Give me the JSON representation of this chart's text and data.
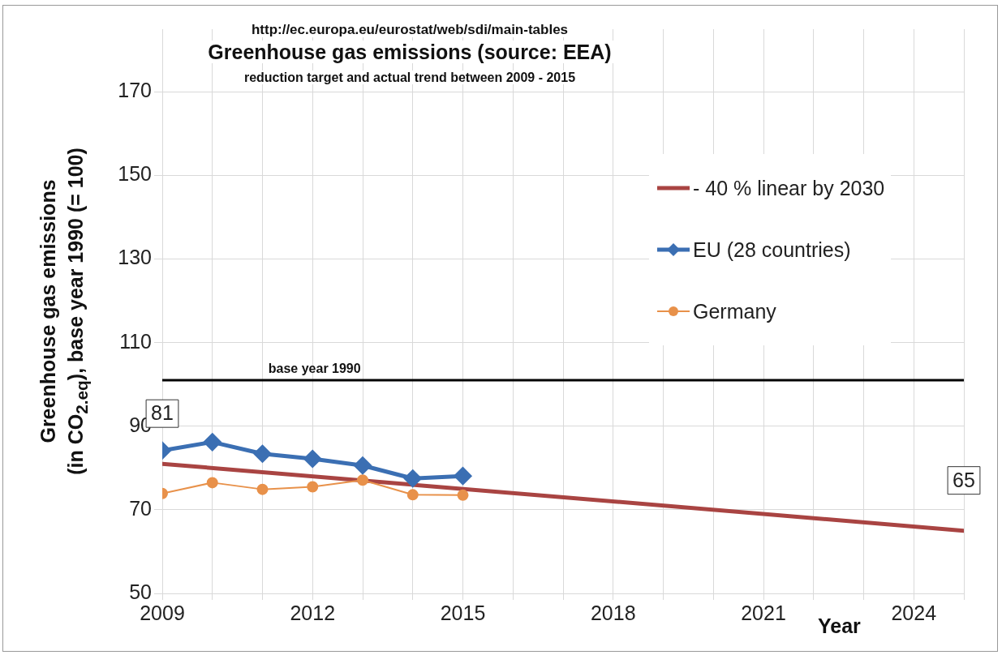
{
  "chart_data": {
    "type": "line",
    "title": "Greenhouse gas emissions (source: EEA)",
    "subtitle": "reduction target and actual trend between 2009 - 2015",
    "annotations": [
      "http://ec.europa.eu/eurostat/web/sdi/main-tables"
    ],
    "xlabel": "Year",
    "ylabel": "Greenhouse gas emissions (in CO$_{2.eq}$), base year 1990 (= 100)",
    "xlim": [
      2009,
      2025
    ],
    "xticks": [
      2009,
      {
        "value": 2010,
        "label": null
      },
      {
        "value": 2011,
        "label": null
      },
      2012,
      {
        "value": 2013,
        "label": null
      },
      {
        "value": 2014,
        "label": null
      },
      2015,
      {
        "value": 2016,
        "label": null
      },
      {
        "value": 2017,
        "label": null
      },
      2018,
      {
        "value": 2019,
        "label": null
      },
      {
        "value": 2020,
        "label": null
      },
      2021,
      {
        "value": 2022,
        "label": null
      },
      {
        "value": 2023,
        "label": null
      },
      2024,
      {
        "value": 2025,
        "label": null
      }
    ],
    "ylim": [
      50,
      185
    ],
    "yticks": [
      50,
      70,
      90,
      110,
      130,
      150,
      170
    ],
    "grid": true,
    "legend": "top right",
    "ref_lines": [
      {
        "axis": "y",
        "value": 101,
        "label": "base year 1990",
        "color": "#000000"
      }
    ],
    "series": [
      {
        "name": "- 40 % linear by 2030",
        "color": "#a94442",
        "x": [
          2009,
          2025
        ],
        "values": [
          81,
          65
        ],
        "value_labels": [
          "81",
          "65"
        ],
        "marker": "none"
      },
      {
        "name": "EU (28 countries)",
        "color": "#3b6fb3",
        "x": [
          2009,
          2010,
          2011,
          2012,
          2013,
          2014,
          2015
        ],
        "values": [
          84.2,
          86.2,
          83.4,
          82.2,
          80.6,
          77.5,
          78.1
        ],
        "marker": "diamond"
      },
      {
        "name": "Germany",
        "color": "#e8914a",
        "x": [
          2009,
          2010,
          2011,
          2012,
          2013,
          2014,
          2015
        ],
        "values": [
          73.9,
          76.5,
          74.9,
          75.5,
          77.1,
          73.6,
          73.5
        ],
        "marker": "circle"
      }
    ]
  }
}
